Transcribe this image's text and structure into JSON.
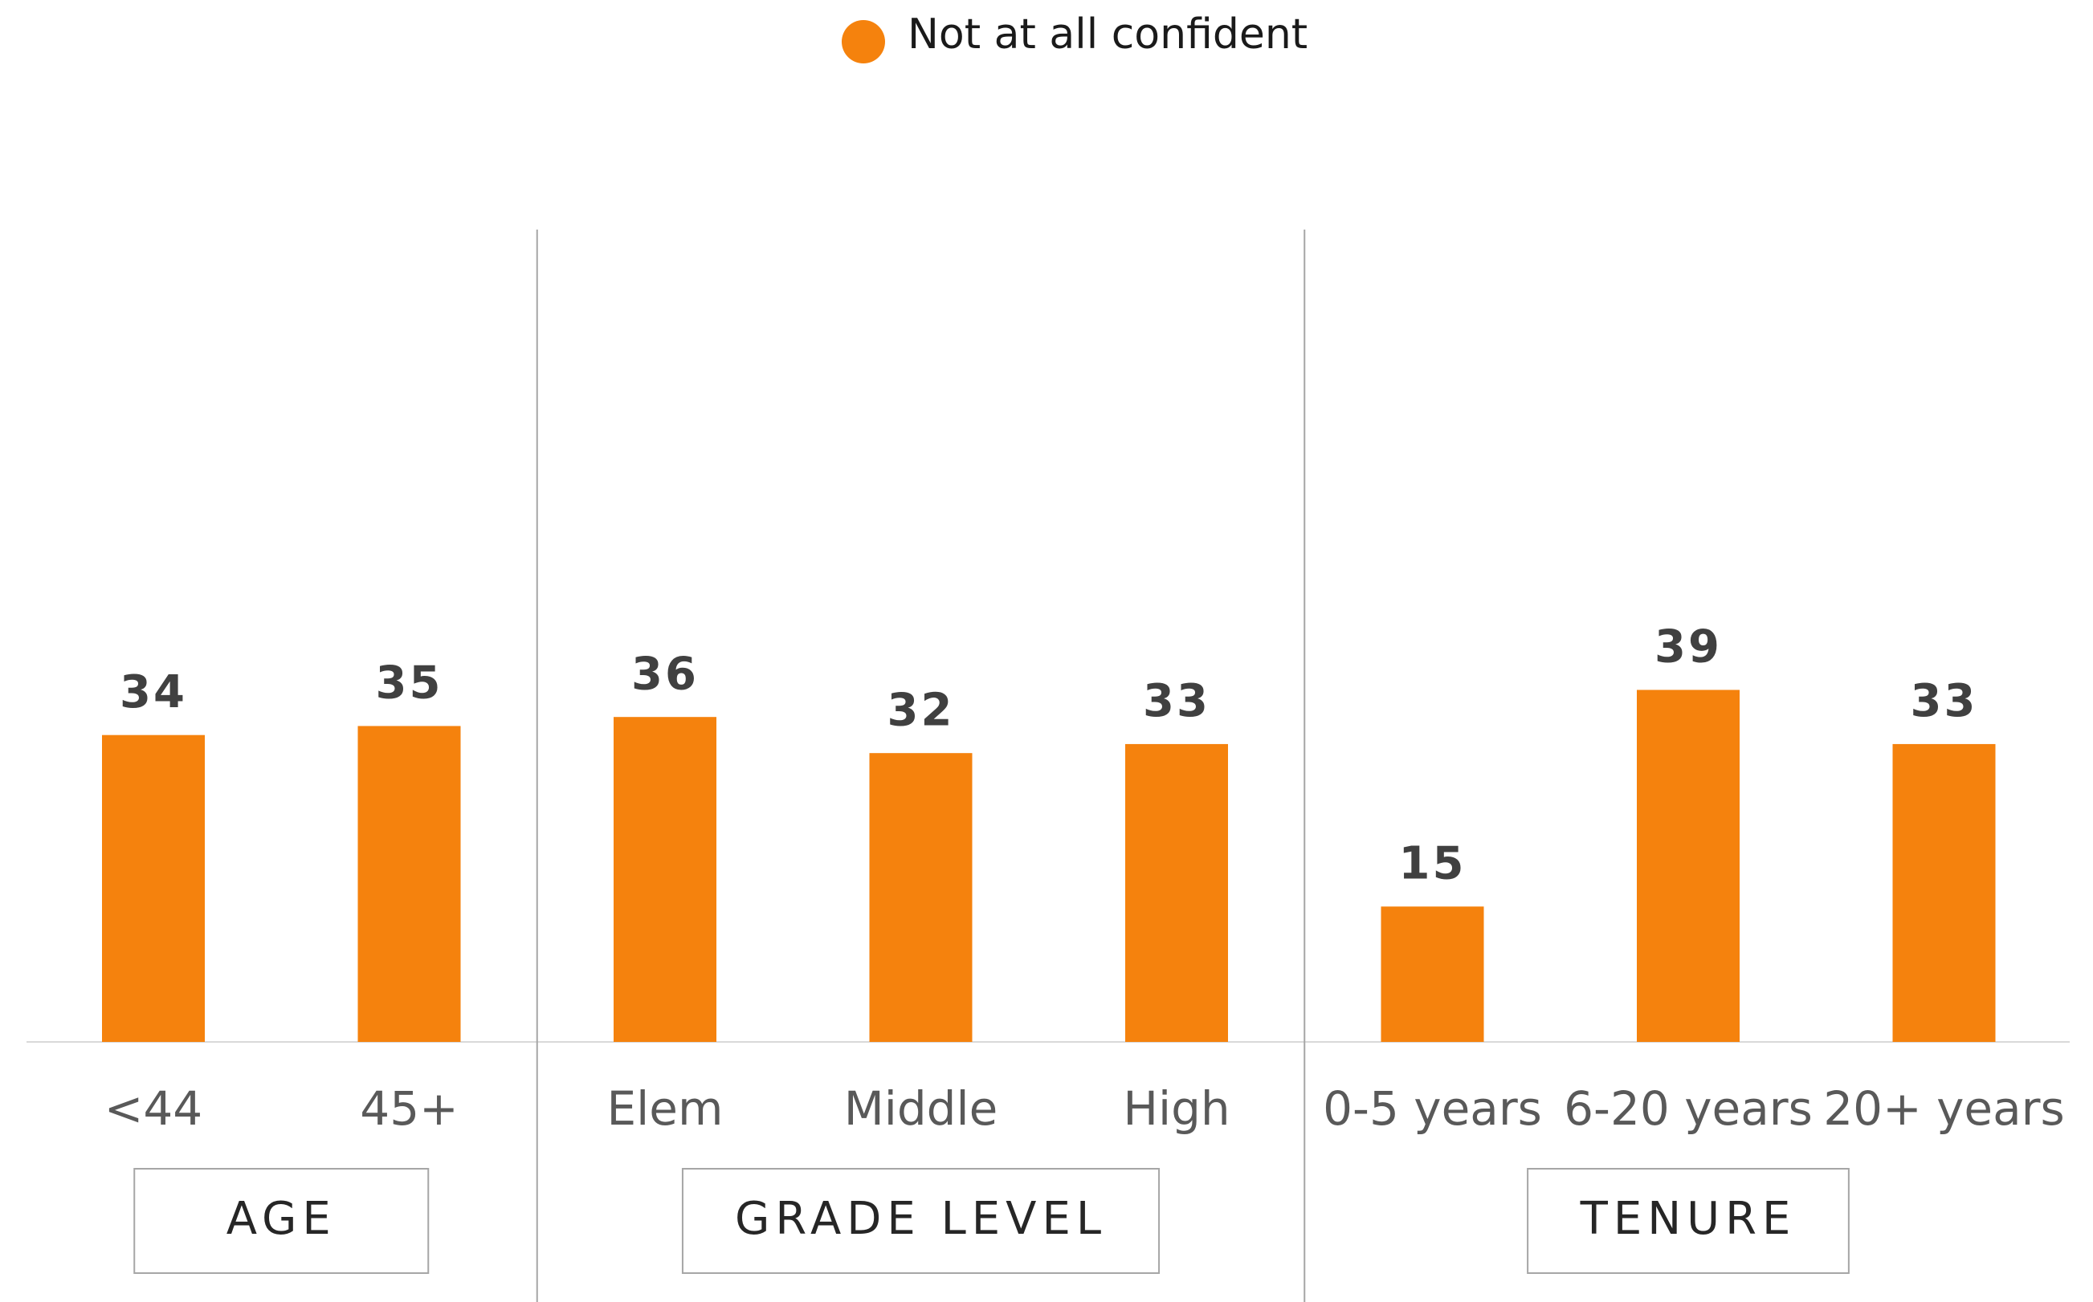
{
  "chart_data": {
    "type": "bar",
    "legend_name": "Not at all confident",
    "color": "#f5820d",
    "ylim": [
      0,
      90
    ],
    "groups": [
      {
        "label": "AGE",
        "categories": [
          "<44",
          "45+"
        ],
        "values": [
          34,
          35
        ]
      },
      {
        "label": "GRADE LEVEL",
        "categories": [
          "Elem",
          "Middle",
          "High"
        ],
        "values": [
          36,
          32,
          33
        ]
      },
      {
        "label": "TENURE",
        "categories": [
          "0-5 years",
          "6-20 years",
          "20+ years"
        ],
        "values": [
          15,
          39,
          33
        ]
      }
    ]
  }
}
